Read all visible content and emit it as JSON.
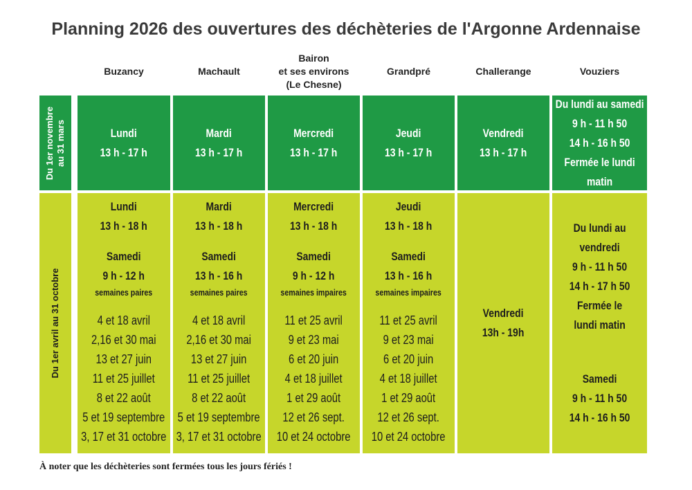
{
  "header": {
    "title": "Planning 2026 des ouvertures des déchèteries de l'Argonne Ardennaise"
  },
  "columns": [
    [
      "Buzancy"
    ],
    [
      "Machault"
    ],
    [
      "Bairon",
      "et ses environs",
      "(Le Chesne)"
    ],
    [
      "Grandpré"
    ],
    [
      "Challerange"
    ],
    [
      "Vouziers"
    ]
  ],
  "rows": [
    {
      "label": [
        "Du 1er novembre",
        "au 31 mars"
      ],
      "cells": [
        [
          [
            "Lundi",
            "13 h - 17 h"
          ]
        ],
        [
          [
            "Mardi",
            "13 h - 17 h"
          ]
        ],
        [
          [
            "Mercredi",
            "13 h - 17 h"
          ]
        ],
        [
          [
            "Jeudi",
            "13 h - 17 h"
          ]
        ],
        [
          [
            "Vendredi",
            "13 h - 17 h"
          ]
        ],
        [
          [
            "Du lundi au samedi",
            "9 h  - 11 h 50",
            "14 h  - 16 h 50",
            "Fermée le lundi",
            "matin"
          ]
        ]
      ]
    },
    {
      "label": [
        "Du 1er avril au 31 octobre"
      ],
      "cells": [
        [
          [
            "Lundi",
            "13 h - 18 h"
          ],
          [
            "Samedi",
            "9 h - 12 h",
            "semaines paires"
          ],
          [
            "4 et 18 avril",
            "2,16 et 30 mai",
            "13 et 27 juin",
            "11 et 25 juillet",
            "8 et 22 août",
            "5 et 19 septembre",
            "3, 17 et 31 octobre"
          ]
        ],
        [
          [
            "Mardi",
            "13 h - 18 h"
          ],
          [
            "Samedi",
            "13 h - 16 h",
            "semaines paires"
          ],
          [
            "4 et 18 avril",
            "2,16 et 30 mai",
            "13 et 27 juin",
            "11 et 25 juillet",
            "8 et 22 août",
            "5 et 19 septembre",
            "3, 17 et 31 octobre"
          ]
        ],
        [
          [
            "Mercredi",
            "13 h - 18 h"
          ],
          [
            "Samedi",
            "9 h - 12 h",
            "semaines impaires"
          ],
          [
            "11 et 25 avril",
            "9 et 23 mai",
            "6 et 20 juin",
            "4 et 18 juillet",
            "1 et 29 août",
            "12 et 26 sept.",
            "10 et 24 octobre"
          ]
        ],
        [
          [
            "Jeudi",
            "13 h - 18 h"
          ],
          [
            "Samedi",
            "13 h - 16 h",
            "semaines impaires"
          ],
          [
            "11 et 25 avril",
            "9 et 23 mai",
            "6 et 20 juin",
            "4 et 18 juillet",
            "1 et 29 août",
            "12 et 26 sept.",
            "10 et 24 octobre"
          ]
        ],
        [
          [
            "Vendredi",
            "13h - 19h"
          ]
        ],
        [
          [
            "Du lundi au",
            "vendredi",
            "9 h - 11 h 50",
            "14 h - 17 h 50",
            "Fermée le",
            "lundi matin"
          ],
          [
            "Samedi",
            "9 h - 11 h 50",
            "14 h - 16 h 50"
          ]
        ]
      ]
    }
  ],
  "note": "À noter que les déchèteries sont fermées tous les jours fériés !"
}
